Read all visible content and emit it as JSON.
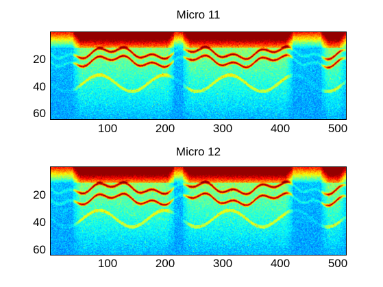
{
  "chart_data": [
    {
      "type": "heatmap",
      "title": "Micro 11",
      "xlabel": "",
      "ylabel": "",
      "xlim": [
        1,
        512
      ],
      "ylim": [
        64,
        1
      ],
      "xticks": [
        "100",
        "200",
        "300",
        "400",
        "500"
      ],
      "yticks": [
        "20",
        "40",
        "60"
      ],
      "colormap": "jet",
      "features": {
        "harmonic_bands_rows": [
          16,
          22
        ],
        "high_energy_rows": [
          1,
          12
        ],
        "active_segments_x": [
          [
            40,
            215
          ],
          [
            230,
            420
          ],
          [
            470,
            512
          ]
        ]
      }
    },
    {
      "type": "heatmap",
      "title": "Micro 12",
      "xlabel": "",
      "ylabel": "",
      "xlim": [
        1,
        512
      ],
      "ylim": [
        64,
        1
      ],
      "xticks": [
        "100",
        "200",
        "300",
        "400",
        "500"
      ],
      "yticks": [
        "20",
        "40",
        "60"
      ],
      "colormap": "jet",
      "features": {
        "harmonic_bands_rows": [
          16,
          24
        ],
        "high_energy_rows": [
          1,
          12
        ],
        "active_segments_x": [
          [
            40,
            215
          ],
          [
            230,
            420
          ],
          [
            470,
            512
          ]
        ]
      }
    }
  ]
}
